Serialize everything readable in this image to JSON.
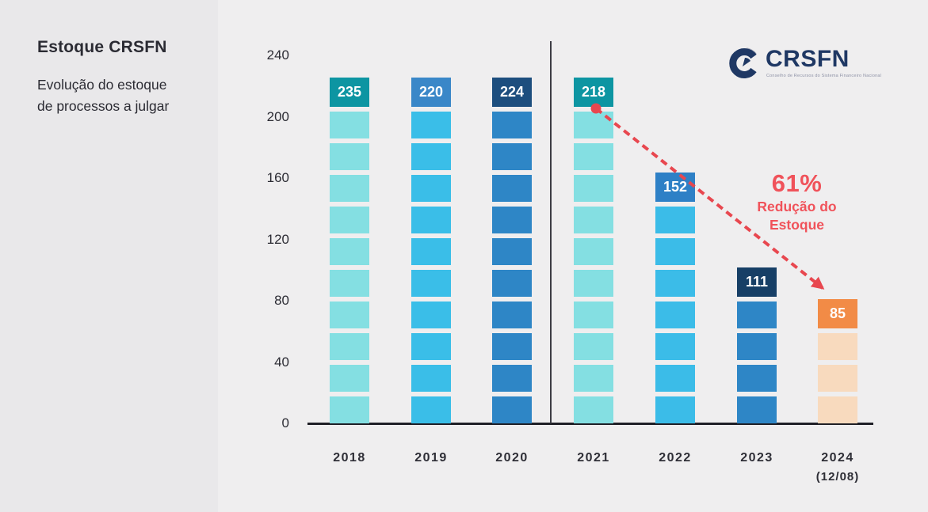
{
  "sidebar": {
    "title": "Estoque CRSFN",
    "subtitle_line1": "Evolução do estoque",
    "subtitle_line2": "de processos a julgar"
  },
  "logo": {
    "text": "CRSFN",
    "tagline": "Conselho de Recursos do Sistema Financeiro Nacional"
  },
  "annotation": {
    "percent": "61%",
    "line1": "Redução do",
    "line2": "Estoque"
  },
  "colors": {
    "background": "#efeeef",
    "sidebar_background": "#e9e8ea",
    "text_dark": "#2b2b33",
    "logo_navy": "#1f3864",
    "annotation_red": "#f0525a",
    "arrow_red": "#e8474f",
    "axis": "#1f1f26",
    "teal_label": "#0d95a2",
    "light_cyan": "#84dfe2",
    "blue_label": "#3a87c8",
    "sky_blue": "#3abee8",
    "navy_label": "#1d4e7e",
    "mid_blue": "#2e86c6",
    "dark_navy_label": "#173f66",
    "orange_label": "#f28b46",
    "light_peach": "#f8dabe"
  },
  "chart_data": {
    "type": "bar",
    "title": "Estoque CRSFN — Evolução do estoque de processos a julgar",
    "categories": [
      "2018",
      "2019",
      "2020",
      "2021",
      "2022",
      "2023",
      "2024 (12/08)"
    ],
    "values": [
      235,
      220,
      224,
      218,
      152,
      111,
      85
    ],
    "xlabel": "",
    "ylabel": "",
    "ylim": [
      0,
      240
    ],
    "y_ticks": [
      0,
      40,
      80,
      120,
      160,
      200,
      240
    ],
    "grid": false,
    "legend": "none",
    "divider_after_category": "2020",
    "annotation": {
      "text": "61% Redução do Estoque",
      "from_category": "2021",
      "to_category": "2024 (12/08)",
      "style": "red dashed arrow with start dot"
    },
    "bars": [
      {
        "year": "2018",
        "year_sub": "",
        "value": 235,
        "segments": 10,
        "label_color": "#0d95a2",
        "segment_color": "#84dfe2"
      },
      {
        "year": "2019",
        "year_sub": "",
        "value": 220,
        "segments": 10,
        "label_color": "#3a87c8",
        "segment_color": "#3abee8"
      },
      {
        "year": "2020",
        "year_sub": "",
        "value": 224,
        "segments": 10,
        "label_color": "#1d4e7e",
        "segment_color": "#2e86c6"
      },
      {
        "year": "2021",
        "year_sub": "",
        "value": 218,
        "segments": 10,
        "label_color": "#0d95a2",
        "segment_color": "#84dfe2"
      },
      {
        "year": "2022",
        "year_sub": "",
        "value": 152,
        "segments": 7,
        "label_color": "#2e80c6",
        "segment_color": "#3bbce8"
      },
      {
        "year": "2023",
        "year_sub": "",
        "value": 111,
        "segments": 4,
        "label_color": "#173f66",
        "segment_color": "#2e86c6"
      },
      {
        "year": "2024",
        "year_sub": "(12/08)",
        "value": 85,
        "segments": 3,
        "label_color": "#f28b46",
        "segment_color": "#f8dabe"
      }
    ]
  }
}
